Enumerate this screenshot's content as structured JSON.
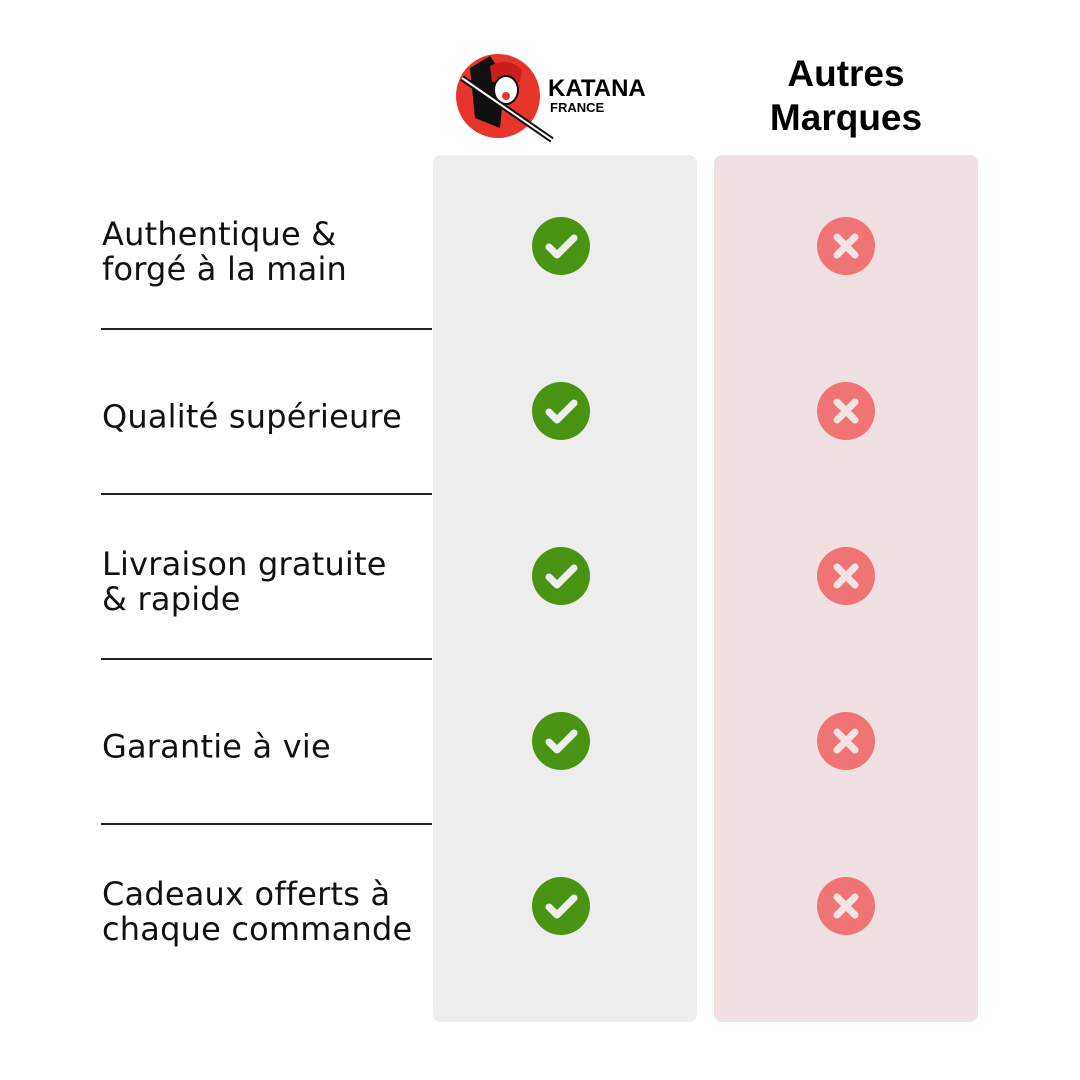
{
  "header": {
    "brand_logo_text": "KATANA FRANCE",
    "other_brands": "Autres Marques"
  },
  "colors": {
    "check": "#4a9414",
    "cross": "#f07474",
    "katana_column": "#ededed",
    "others_column": "#f1e0e1"
  },
  "rows": [
    {
      "label": "Authentique & forgé à la main",
      "katana": "check-icon",
      "others": "cross-icon"
    },
    {
      "label": "Qualité supérieure",
      "katana": "check-icon",
      "others": "cross-icon"
    },
    {
      "label": "Livraison gratuite & rapide",
      "katana": "check-icon",
      "others": "cross-icon"
    },
    {
      "label": "Garantie à vie",
      "katana": "check-icon",
      "others": "cross-icon"
    },
    {
      "label": "Cadeaux offerts à chaque commande",
      "katana": "check-icon",
      "others": "cross-icon"
    }
  ]
}
